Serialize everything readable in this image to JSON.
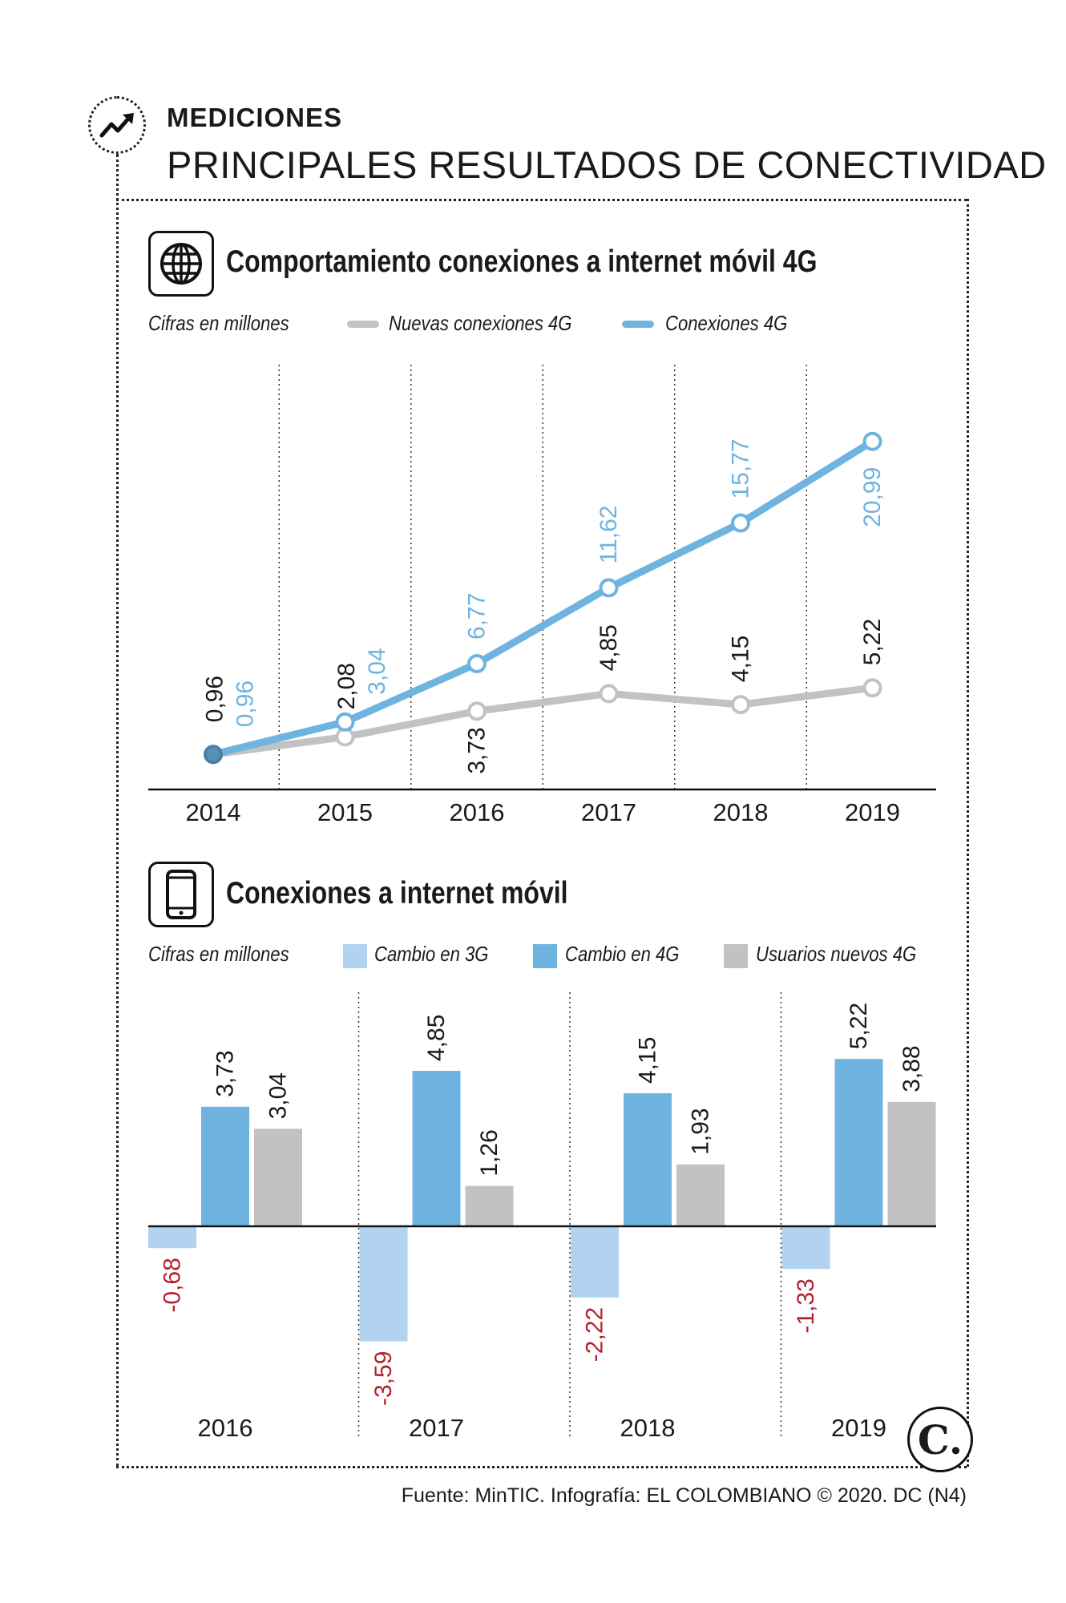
{
  "header": {
    "kicker": "MEDICIONES",
    "title": "PRINCIPALES RESULTADOS DE CONECTIVIDAD"
  },
  "section1": {
    "title": "Comportamiento conexiones a internet móvil 4G",
    "icon": "globe-icon",
    "units_note": "Cifras en millones",
    "legend": [
      {
        "label": "Nuevas conexiones 4G",
        "color": "#c2c2c4"
      },
      {
        "label": "Conexiones 4G",
        "color": "#6fb3e0"
      }
    ]
  },
  "section2": {
    "title": "Conexiones a internet móvil",
    "icon": "smartphone-icon",
    "units_note": "Cifras en millones",
    "legend": [
      {
        "label": "Cambio en 3G",
        "color": "#b1d3ef"
      },
      {
        "label": "Cambio en 4G",
        "color": "#6fb3e0"
      },
      {
        "label": "Usuarios nuevos 4G",
        "color": "#c2c2c4"
      }
    ]
  },
  "chart_data": [
    {
      "type": "line",
      "title": "Comportamiento conexiones a internet móvil 4G",
      "x": [
        "2014",
        "2015",
        "2016",
        "2017",
        "2018",
        "2019"
      ],
      "series": [
        {
          "name": "Nuevas conexiones 4G",
          "values": [
            0.96,
            2.08,
            3.73,
            4.85,
            4.15,
            5.22
          ],
          "labels": [
            "0,96",
            "2,08",
            "3,73",
            "4,85",
            "4,15",
            "5,22"
          ],
          "color": "#c2c2c4",
          "label_color": "#1a1a1a"
        },
        {
          "name": "Conexiones 4G",
          "values": [
            0.96,
            3.04,
            6.77,
            11.62,
            15.77,
            20.99
          ],
          "labels": [
            "0,96",
            "3,04",
            "6,77",
            "11,62",
            "15,77",
            "20,99"
          ],
          "color": "#6fb3e0",
          "label_color": "#6fb3e0"
        }
      ],
      "ylim": [
        0,
        21
      ],
      "grid": "vertical dotted separators"
    },
    {
      "type": "bar",
      "title": "Conexiones a internet móvil",
      "categories": [
        "2016",
        "2017",
        "2018",
        "2019"
      ],
      "series": [
        {
          "name": "Cambio en 3G",
          "values": [
            -0.68,
            -3.59,
            -2.22,
            -1.33
          ],
          "labels": [
            "-0,68",
            "-3,59",
            "-2,22",
            "-1,33"
          ],
          "color": "#b1d3ef",
          "label_color": "#b5202e"
        },
        {
          "name": "Cambio en 4G",
          "values": [
            3.73,
            4.85,
            4.15,
            5.22
          ],
          "labels": [
            "3,73",
            "4,85",
            "4,15",
            "5,22"
          ],
          "color": "#6fb3e0",
          "label_color": "#1a1a1a"
        },
        {
          "name": "Usuarios nuevos 4G",
          "values": [
            3.04,
            1.26,
            1.93,
            3.88
          ],
          "labels": [
            "3,04",
            "1,26",
            "1,93",
            "3,88"
          ],
          "color": "#c2c2c4",
          "label_color": "#1a1a1a"
        }
      ],
      "grid": "vertical dotted separators"
    }
  ],
  "footer": {
    "source": "Fuente: MinTIC. Infografía: EL COLOMBIANO © 2020. DC (N4)",
    "logo_text": "C."
  }
}
